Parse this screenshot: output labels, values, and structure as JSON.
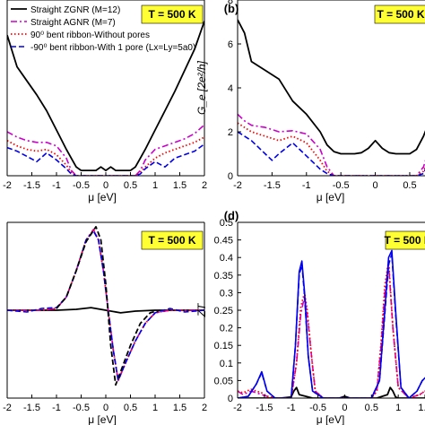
{
  "chart_data": [
    {
      "panel": "a",
      "type": "line",
      "xlabel": "μ [eV]",
      "ylabel": "",
      "xlim": [
        -2,
        2
      ],
      "ylim": [
        0,
        1
      ],
      "xticks": [
        "-2",
        "-1.5",
        "-1",
        "-0.5",
        "0",
        "0.5",
        "1",
        "1.5",
        "2"
      ],
      "annotation": "T = 500 K",
      "legend_position": "top-left",
      "legend": [
        "Straight ZGNR (M=12)",
        "Straight AGNR (M=7)",
        "90⁰ bent ribbon-Without pores",
        "-90⁰ bent ribbon-With 1 pore (Lx=Ly=5a0)"
      ],
      "series": [
        {
          "style": "black-solid",
          "x": [
            -2,
            -1.8,
            -1.6,
            -1.4,
            -1.2,
            -1.0,
            -0.8,
            -0.7,
            -0.6,
            -0.5,
            -0.3,
            -0.2,
            -0.1,
            0,
            0.1,
            0.2,
            0.3,
            0.5,
            0.6,
            0.7,
            0.8,
            1.0,
            1.2,
            1.4,
            1.6,
            1.8,
            2.0
          ],
          "y": [
            0.8,
            0.62,
            0.54,
            0.46,
            0.37,
            0.26,
            0.15,
            0.1,
            0.05,
            0.03,
            0.03,
            0.03,
            0.05,
            0.03,
            0.05,
            0.03,
            0.03,
            0.03,
            0.05,
            0.1,
            0.15,
            0.26,
            0.37,
            0.48,
            0.6,
            0.72,
            0.88
          ]
        },
        {
          "style": "magenta-dashdot",
          "x": [
            -2,
            -1.8,
            -1.6,
            -1.4,
            -1.2,
            -1.0,
            -0.8,
            -0.7,
            -0.6,
            0,
            0.6,
            0.7,
            0.8,
            1.0,
            1.2,
            1.4,
            1.6,
            1.8,
            2.0
          ],
          "y": [
            0.25,
            0.22,
            0.2,
            0.19,
            0.19,
            0.17,
            0.1,
            0.03,
            0.0,
            0.0,
            0.0,
            0.03,
            0.09,
            0.15,
            0.17,
            0.19,
            0.21,
            0.24,
            0.29
          ]
        },
        {
          "style": "red-dotted",
          "x": [
            -2,
            -1.8,
            -1.6,
            -1.4,
            -1.2,
            -1.0,
            -0.8,
            -0.7,
            -0.6,
            0,
            0.6,
            0.7,
            0.8,
            1.0,
            1.2,
            1.4,
            1.6,
            1.8,
            2.0
          ],
          "y": [
            0.2,
            0.17,
            0.15,
            0.14,
            0.15,
            0.12,
            0.06,
            0.02,
            0.0,
            0.0,
            0.0,
            0.02,
            0.05,
            0.1,
            0.13,
            0.15,
            0.17,
            0.19,
            0.22
          ]
        },
        {
          "style": "blue-dashed",
          "x": [
            -2,
            -1.8,
            -1.6,
            -1.4,
            -1.2,
            -1.0,
            -0.8,
            -0.7,
            -0.6,
            0,
            0.6,
            0.7,
            0.8,
            1.0,
            1.2,
            1.4,
            1.6,
            1.8,
            2.0
          ],
          "y": [
            0.16,
            0.14,
            0.11,
            0.08,
            0.13,
            0.09,
            0.04,
            0.01,
            0.0,
            0.0,
            0.0,
            0.01,
            0.04,
            0.08,
            0.05,
            0.1,
            0.12,
            0.14,
            0.18
          ]
        }
      ]
    },
    {
      "panel": "b",
      "type": "line",
      "panel_label": "(b)",
      "xlabel": "μ [eV]",
      "ylabel": "G_e [2e²/h]",
      "xlim": [
        -2,
        0.8
      ],
      "ylim": [
        0,
        8
      ],
      "yticks": [
        "0",
        "2",
        "4",
        "6",
        "8"
      ],
      "xticks": [
        "-2",
        "-1.5",
        "-1",
        "-0.5",
        "0",
        "0.5"
      ],
      "annotation": "T = 500 K",
      "series": [
        {
          "style": "black-solid",
          "x": [
            -2,
            -1.9,
            -1.8,
            -1.6,
            -1.4,
            -1.2,
            -1.0,
            -0.8,
            -0.7,
            -0.6,
            -0.5,
            -0.3,
            -0.2,
            -0.1,
            0,
            0.1,
            0.2,
            0.3,
            0.5,
            0.6,
            0.7,
            0.8
          ],
          "y": [
            7.1,
            6.5,
            5.2,
            4.8,
            4.4,
            3.4,
            2.8,
            2.0,
            1.4,
            1.1,
            1.0,
            1.0,
            1.05,
            1.25,
            1.6,
            1.25,
            1.05,
            1.0,
            1.0,
            1.2,
            1.8,
            2.6
          ]
        },
        {
          "style": "magenta-dashdot",
          "x": [
            -2,
            -1.9,
            -1.8,
            -1.6,
            -1.4,
            -1.2,
            -1.0,
            -0.8,
            -0.7,
            -0.6,
            0,
            0.6,
            0.7,
            0.8
          ],
          "y": [
            2.8,
            2.5,
            2.3,
            2.2,
            2.0,
            2.05,
            1.9,
            1.2,
            0.4,
            0.0,
            0.0,
            0.0,
            0.4,
            1.4
          ]
        },
        {
          "style": "red-dotted",
          "x": [
            -2,
            -1.9,
            -1.8,
            -1.6,
            -1.4,
            -1.2,
            -1.0,
            -0.8,
            -0.7,
            -0.6,
            0,
            0.6,
            0.7,
            0.8
          ],
          "y": [
            2.4,
            2.2,
            2.0,
            1.8,
            1.6,
            1.8,
            1.5,
            0.7,
            0.2,
            0.0,
            0.0,
            0.0,
            0.2,
            1.0
          ]
        },
        {
          "style": "blue-dashed",
          "x": [
            -2,
            -1.9,
            -1.8,
            -1.6,
            -1.5,
            -1.4,
            -1.2,
            -1.0,
            -0.8,
            -0.7,
            -0.6,
            0,
            0.6,
            0.7,
            0.8
          ],
          "y": [
            2.0,
            1.8,
            1.6,
            1.0,
            0.7,
            1.0,
            1.5,
            0.9,
            0.3,
            0.1,
            0.0,
            0.0,
            0.0,
            0.1,
            0.8
          ]
        }
      ]
    },
    {
      "panel": "c",
      "type": "line",
      "xlabel": "μ [eV]",
      "ylabel": "",
      "xlim": [
        -2,
        2
      ],
      "ylim": [
        -1,
        1
      ],
      "xticks": [
        "-2",
        "-1.5",
        "-1",
        "-0.5",
        "0",
        "0.5",
        "1",
        "1.5",
        "2"
      ],
      "annotation": "T = 500 K",
      "series": [
        {
          "style": "black-solid",
          "x": [
            -2,
            -1,
            -0.6,
            -0.3,
            0,
            0.3,
            0.6,
            1,
            2
          ],
          "y": [
            0,
            0,
            0.01,
            0.03,
            0,
            -0.03,
            -0.01,
            0,
            0
          ]
        },
        {
          "style": "magenta-dashdot",
          "x": [
            -2,
            -1.6,
            -1.3,
            -1.0,
            -0.8,
            -0.6,
            -0.4,
            -0.25,
            -0.15,
            -0.05,
            0.05,
            0.15,
            0.25,
            0.4,
            0.6,
            0.8,
            1.0,
            1.3,
            1.6,
            2
          ],
          "y": [
            0,
            0,
            0,
            0.02,
            0.15,
            0.45,
            0.8,
            0.92,
            0.8,
            0.45,
            0,
            -0.45,
            -0.8,
            -0.6,
            -0.35,
            -0.15,
            -0.03,
            0,
            0,
            0
          ]
        },
        {
          "style": "red-dotted",
          "x": [
            -2,
            -1.6,
            -1.3,
            -1.0,
            -0.8,
            -0.6,
            -0.4,
            -0.25,
            -0.15,
            -0.05,
            0.05,
            0.15,
            0.25,
            0.4,
            0.6,
            0.8,
            1.0,
            1.3,
            1.6,
            2
          ],
          "y": [
            0,
            0,
            0,
            0.02,
            0.15,
            0.45,
            0.8,
            0.91,
            0.8,
            0.45,
            0,
            -0.45,
            -0.8,
            -0.6,
            -0.35,
            -0.15,
            -0.03,
            0,
            0,
            0
          ]
        },
        {
          "style": "blue-dashed",
          "x": [
            -2,
            -1.6,
            -1.3,
            -1.0,
            -0.8,
            -0.6,
            -0.4,
            -0.25,
            -0.15,
            -0.05,
            0.05,
            0.15,
            0.25,
            0.4,
            0.6,
            0.8,
            1.0,
            1.3,
            1.6,
            2
          ],
          "y": [
            0,
            -0.02,
            0.02,
            0.03,
            0.15,
            0.45,
            0.8,
            0.9,
            0.8,
            0.45,
            0,
            -0.45,
            -0.8,
            -0.6,
            -0.35,
            -0.15,
            -0.03,
            0.02,
            -0.02,
            0
          ]
        },
        {
          "style": "black-dashed",
          "x": [
            -1.0,
            -0.8,
            -0.6,
            -0.4,
            -0.2,
            -0.1,
            0,
            0.1,
            0.2,
            0.3,
            0.5,
            0.7,
            0.9,
            1.1
          ],
          "y": [
            0.02,
            0.15,
            0.45,
            0.78,
            0.95,
            0.8,
            0.3,
            -0.4,
            -0.85,
            -0.7,
            -0.4,
            -0.15,
            -0.03,
            0
          ]
        }
      ]
    },
    {
      "panel": "d",
      "type": "line",
      "panel_label": "(d)",
      "xlabel": "μ [eV]",
      "ylabel": "ZT",
      "xlim": [
        -2,
        1.6
      ],
      "ylim": [
        0,
        0.5
      ],
      "yticks": [
        "0",
        "0.05",
        "0.1",
        "0.15",
        "0.2",
        "0.25",
        "0.3",
        "0.35",
        "0.4",
        "0.45",
        "0.5"
      ],
      "xticks": [
        "-2",
        "-1.5",
        "-1",
        "-0.5",
        "0",
        "0.5",
        "1",
        "1.5"
      ],
      "annotation": "T = 500 K",
      "series": [
        {
          "style": "black-solid",
          "x": [
            -2,
            -1.2,
            -1.0,
            -0.95,
            -0.9,
            -0.85,
            -0.6,
            -0.1,
            0,
            0.1,
            0.6,
            0.8,
            0.85,
            0.9,
            0.95,
            1.0,
            1.6
          ],
          "y": [
            0,
            0,
            0.003,
            0.02,
            0.03,
            0.01,
            0,
            0,
            0.005,
            0,
            0,
            0.01,
            0.03,
            0.02,
            0.003,
            0,
            0
          ]
        },
        {
          "style": "magenta-dashdot",
          "x": [
            -2,
            -1.9,
            -1.75,
            -1.65,
            -1.55,
            -1.45,
            -1.3,
            -1.0,
            -0.9,
            -0.82,
            -0.75,
            -0.7,
            -0.62,
            -0.55,
            -0.4,
            0,
            0.5,
            0.6,
            0.68,
            0.75,
            0.82,
            0.9,
            1.0,
            1.2,
            1.4,
            1.5,
            1.6
          ],
          "y": [
            0.02,
            0.01,
            0.02,
            0.015,
            0.01,
            0.005,
            0,
            0,
            0.1,
            0.24,
            0.29,
            0.24,
            0.12,
            0.02,
            0,
            0,
            0,
            0.02,
            0.15,
            0.3,
            0.38,
            0.2,
            0.03,
            0,
            0.01,
            0.02,
            0.03
          ]
        },
        {
          "style": "red-dotted",
          "x": [
            -2,
            -1.9,
            -1.75,
            -1.65,
            -1.55,
            -1.45,
            -1.3,
            -1.0,
            -0.9,
            -0.82,
            -0.75,
            -0.7,
            -0.62,
            -0.55,
            -0.4,
            0,
            0.5,
            0.6,
            0.68,
            0.75,
            0.82,
            0.9,
            1.0,
            1.2,
            1.4,
            1.5,
            1.6
          ],
          "y": [
            0.02,
            0.015,
            0.025,
            0.02,
            0.015,
            0.005,
            0,
            0,
            0.1,
            0.26,
            0.3,
            0.25,
            0.12,
            0.02,
            0,
            0,
            0,
            0.02,
            0.16,
            0.32,
            0.39,
            0.2,
            0.03,
            0,
            0.01,
            0.02,
            0.03
          ]
        },
        {
          "style": "blue-solid",
          "x": [
            -2,
            -1.8,
            -1.65,
            -1.55,
            -1.45,
            -1.3,
            -1.0,
            -0.92,
            -0.85,
            -0.8,
            -0.75,
            -0.68,
            -0.6,
            -0.4,
            0,
            0.5,
            0.65,
            0.75,
            0.82,
            0.88,
            0.95,
            1.05,
            1.2,
            1.35,
            1.45,
            1.55,
            1.6
          ],
          "y": [
            0.0,
            0.005,
            0.04,
            0.075,
            0.02,
            0,
            0,
            0.15,
            0.36,
            0.39,
            0.3,
            0.12,
            0.02,
            0,
            0,
            0,
            0.05,
            0.25,
            0.4,
            0.42,
            0.25,
            0.03,
            0,
            0.02,
            0.05,
            0.065,
            0.04
          ]
        },
        {
          "style": "blue-dashed",
          "x": [
            -2,
            -1.8,
            -1.65,
            -1.55,
            -1.45,
            -1.3,
            -1.0,
            -0.92,
            -0.85,
            -0.8,
            -0.75,
            -0.68,
            -0.6,
            -0.4,
            0,
            0.5,
            0.65,
            0.75,
            0.82,
            0.88,
            0.95,
            1.05,
            1.2,
            1.35,
            1.45,
            1.55,
            1.6
          ],
          "y": [
            0.0,
            0.005,
            0.04,
            0.072,
            0.02,
            0,
            0,
            0.15,
            0.35,
            0.38,
            0.29,
            0.12,
            0.02,
            0,
            0,
            0,
            0.05,
            0.24,
            0.38,
            0.41,
            0.24,
            0.03,
            0,
            0.02,
            0.05,
            0.06,
            0.04
          ]
        }
      ]
    }
  ],
  "colors": {
    "black": "#000000",
    "magenta": "#cc00cc",
    "red": "#ff0000",
    "blue": "#0000ee",
    "annotation_bg": "#ffff33",
    "axis": "#000000",
    "tick_text": "#000000"
  }
}
